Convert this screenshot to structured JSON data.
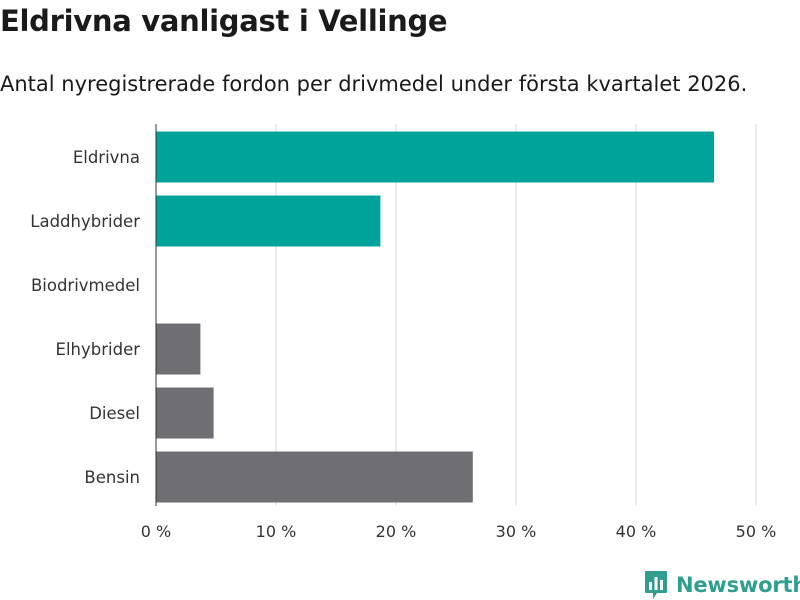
{
  "title": "Eldrivna vanligast i Vellinge",
  "subtitle": "Antal nyregistrerade fordon per drivmedel under första kvartalet 2026.",
  "brand": "Newsworthy",
  "colors": {
    "highlight": "#00a39a",
    "neutral": "#6e6e73",
    "gridline": "#d9d9d9",
    "brand": "#2f9e8f"
  },
  "chart_data": {
    "type": "bar",
    "orientation": "horizontal",
    "categories": [
      "Eldrivna",
      "Laddhybrider",
      "Biodrivmedel",
      "Elhybrider",
      "Diesel",
      "Bensin"
    ],
    "values": [
      46.5,
      18.7,
      0,
      3.7,
      4.8,
      26.4
    ],
    "value_unit": "%",
    "highlight": [
      true,
      true,
      true,
      false,
      false,
      false
    ],
    "xlim": [
      0,
      50
    ],
    "xticks": [
      0,
      10,
      20,
      30,
      40,
      50
    ],
    "xtick_labels": [
      "0 %",
      "10 %",
      "20 %",
      "30 %",
      "40 %",
      "50 %"
    ],
    "grid": true,
    "xlabel": "",
    "ylabel": ""
  }
}
